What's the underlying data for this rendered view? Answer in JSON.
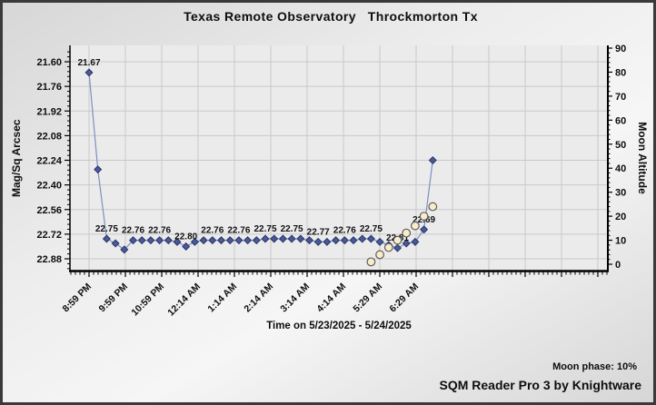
{
  "footer": {
    "moon_phase": "Moon phase: 10%",
    "branding": "SQM Reader Pro 3 by Knightware"
  },
  "chart_data": {
    "type": "line",
    "title": "Texas Remote Observatory   Throckmorton Tx",
    "xlabel": "Time on 5/23/2025 - 5/24/2025",
    "axes": {
      "left": {
        "label": "Mag/Sq Arcsec",
        "ticks": [
          21.6,
          21.76,
          21.92,
          22.08,
          22.24,
          22.4,
          22.56,
          22.72,
          22.88
        ],
        "ylim": [
          21.49,
          22.97
        ],
        "inverted": true,
        "grid": true
      },
      "right": {
        "label": "Moon Altitude",
        "ticks": [
          0,
          10,
          20,
          30,
          40,
          50,
          60,
          70,
          80,
          90
        ],
        "ylim": [
          0,
          90
        ]
      },
      "x": {
        "tick_labels": [
          "8:59 PM",
          "9:59 PM",
          "10:59 PM",
          "12:14 AM",
          "1:14 AM",
          "2:14 AM",
          "3:14 AM",
          "4:14 AM",
          "5:29 AM",
          "6:29 AM"
        ],
        "total_gridlines": 15,
        "grid": true
      }
    },
    "series": [
      {
        "name": "sqm-reading",
        "axis": "left",
        "marker": "diamond",
        "points": [
          [
            0,
            21.67,
            "21.67"
          ],
          [
            1,
            22.3,
            null
          ],
          [
            2,
            22.75,
            "22.75"
          ],
          [
            3,
            22.78,
            null
          ],
          [
            4,
            22.82,
            null
          ],
          [
            5,
            22.76,
            "22.76"
          ],
          [
            6,
            22.76,
            null
          ],
          [
            7,
            22.76,
            null
          ],
          [
            8,
            22.76,
            "22.76"
          ],
          [
            9,
            22.76,
            null
          ],
          [
            10,
            22.77,
            null
          ],
          [
            11,
            22.8,
            "22.80"
          ],
          [
            12,
            22.77,
            null
          ],
          [
            13,
            22.76,
            null
          ],
          [
            14,
            22.76,
            "22.76"
          ],
          [
            15,
            22.76,
            null
          ],
          [
            16,
            22.76,
            null
          ],
          [
            17,
            22.76,
            "22.76"
          ],
          [
            18,
            22.76,
            null
          ],
          [
            19,
            22.76,
            null
          ],
          [
            20,
            22.75,
            "22.75"
          ],
          [
            21,
            22.75,
            null
          ],
          [
            22,
            22.75,
            null
          ],
          [
            23,
            22.75,
            "22.75"
          ],
          [
            24,
            22.75,
            null
          ],
          [
            25,
            22.76,
            null
          ],
          [
            26,
            22.77,
            "22.77"
          ],
          [
            27,
            22.77,
            null
          ],
          [
            28,
            22.76,
            null
          ],
          [
            29,
            22.76,
            "22.76"
          ],
          [
            30,
            22.76,
            null
          ],
          [
            31,
            22.75,
            null
          ],
          [
            32,
            22.75,
            "22.75"
          ],
          [
            33,
            22.77,
            null
          ],
          [
            34,
            22.79,
            null
          ],
          [
            35,
            22.81,
            "22.81"
          ],
          [
            36,
            22.78,
            null
          ],
          [
            37,
            22.77,
            null
          ],
          [
            38,
            22.69,
            "22.69"
          ],
          [
            39,
            22.24,
            null
          ]
        ]
      },
      {
        "name": "moon-altitude",
        "axis": "right",
        "marker": "circle",
        "points": [
          [
            32,
            1,
            null
          ],
          [
            33,
            4,
            null
          ],
          [
            34,
            7,
            null
          ],
          [
            35,
            10,
            null
          ],
          [
            36,
            13,
            null
          ],
          [
            37,
            16,
            null
          ],
          [
            38,
            20,
            null
          ],
          [
            39,
            24,
            null
          ]
        ]
      }
    ],
    "colors": {
      "sqm_line": "#7e8fc0",
      "sqm_marker_fill": "#4a5a94",
      "sqm_marker_stroke": "#26336b",
      "moon_marker_fill": "#f8ecca",
      "moon_marker_stroke": "#5c5c5c",
      "gridline": "#c9c9c9",
      "plot_bg": "#ebebeb",
      "axis": "#000000"
    }
  }
}
